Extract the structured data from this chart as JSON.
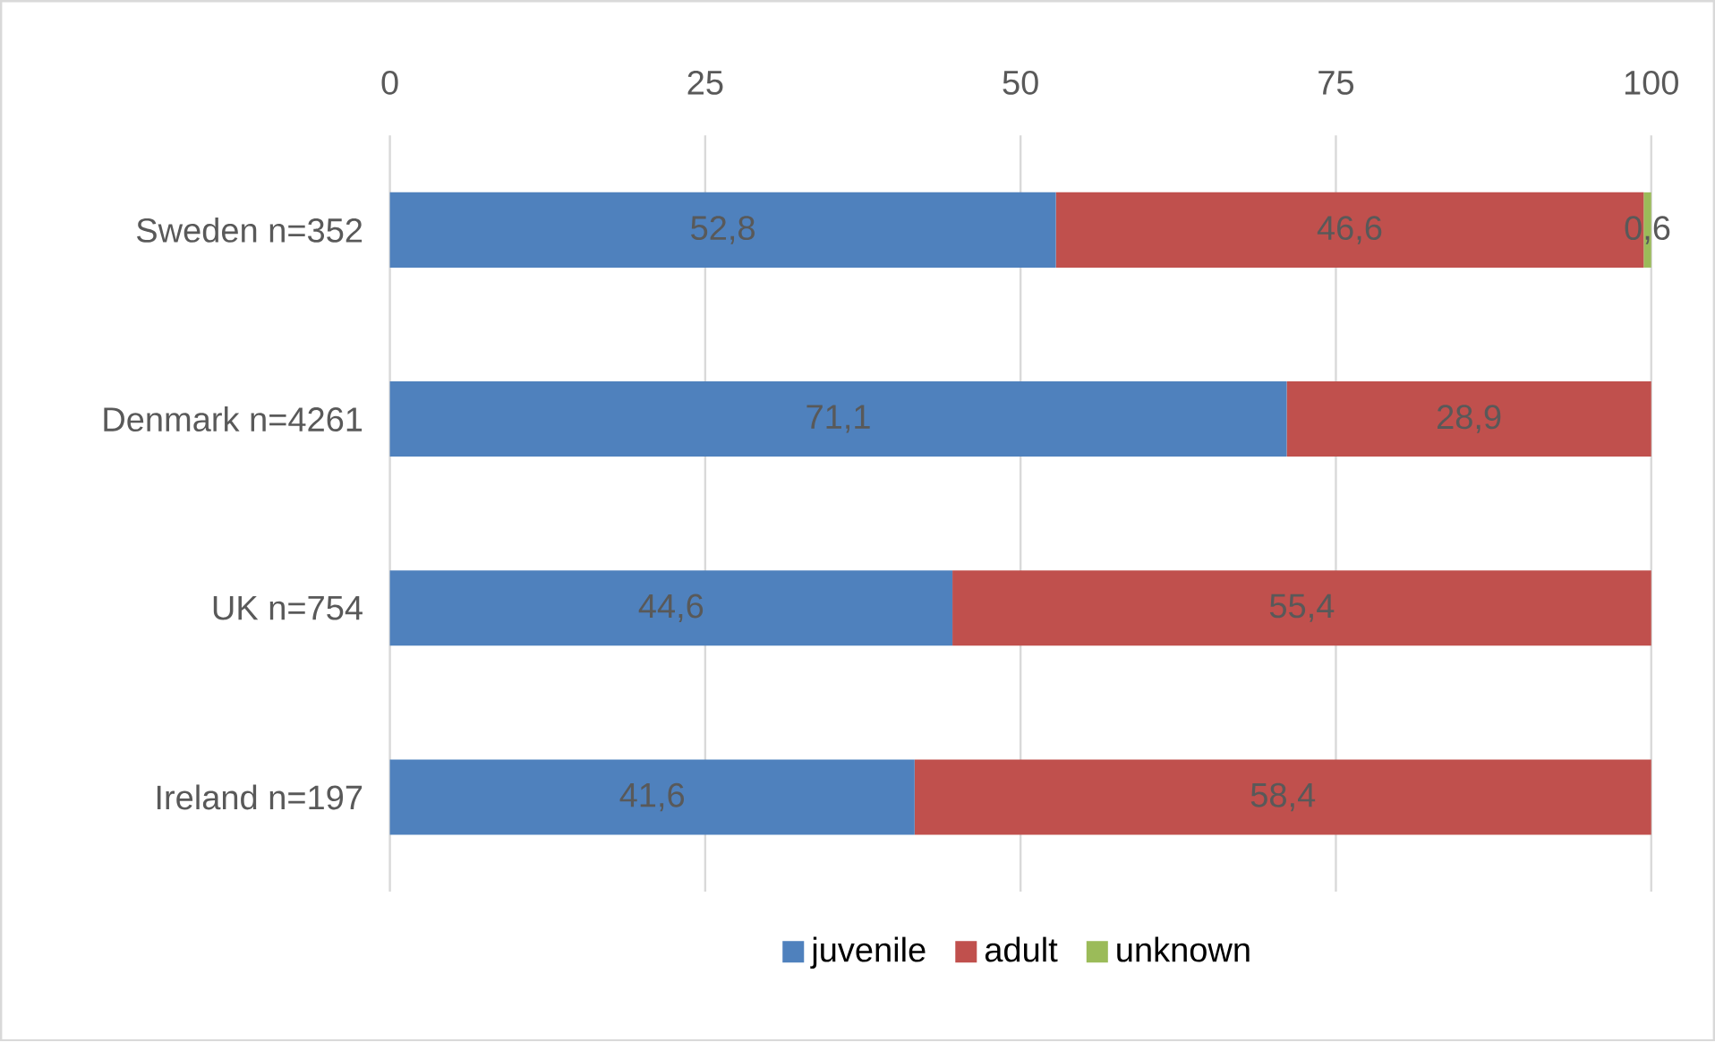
{
  "chart_data": {
    "type": "bar",
    "orientation": "horizontal",
    "stacked": true,
    "categories": [
      "Sweden n=352",
      "Denmark n=4261",
      "UK n=754",
      "Ireland n=197"
    ],
    "series": [
      {
        "name": "juvenile",
        "color": "#4f81bd",
        "values": [
          52.8,
          71.1,
          44.6,
          41.6
        ],
        "value_labels": [
          "52,8",
          "71,1",
          "44,6",
          "41,6"
        ]
      },
      {
        "name": "adult",
        "color": "#c0504d",
        "values": [
          46.6,
          28.9,
          55.4,
          58.4
        ],
        "value_labels": [
          "46,6",
          "28,9",
          "55,4",
          "58,4"
        ]
      },
      {
        "name": "unknown",
        "color": "#9bbb59",
        "values": [
          0.6,
          0,
          0,
          0
        ],
        "value_labels": [
          "0,6",
          null,
          null,
          null
        ]
      }
    ],
    "xlim": [
      0,
      100
    ],
    "xticks": [
      0,
      25,
      50,
      75,
      100
    ],
    "grid": "x",
    "legend": "bottom"
  }
}
